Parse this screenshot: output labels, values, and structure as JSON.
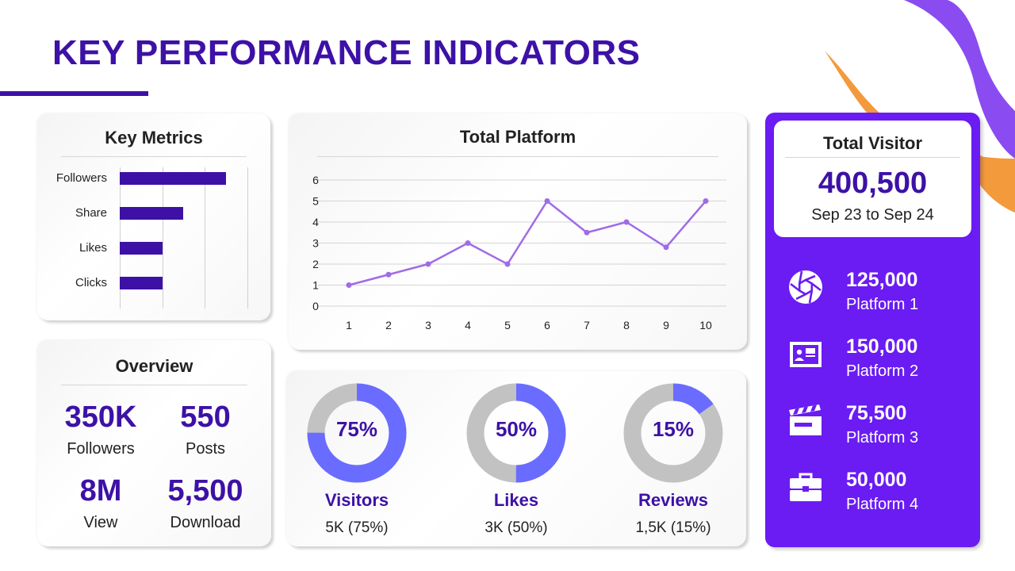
{
  "page": {
    "title": "KEY PERFORMANCE INDICATORS"
  },
  "colors": {
    "primary": "#3d11a6",
    "accent": "#6a1cf2",
    "line": "#a06be6",
    "donut_fill": "#6a6cff",
    "donut_rest": "#c2c2c2",
    "deco_orange": "#f39a3d",
    "deco_purple": "#8a4cf0"
  },
  "key_metrics": {
    "title": "Key Metrics",
    "chart_data": {
      "type": "bar",
      "orientation": "horizontal",
      "categories": [
        "Followers",
        "Share",
        "Likes",
        "Clicks"
      ],
      "values": [
        2.5,
        1.5,
        1.0,
        1.0
      ],
      "xlim": [
        0,
        3
      ],
      "grid": true
    }
  },
  "overview": {
    "title": "Overview",
    "stats": [
      {
        "value": "350K",
        "label": "Followers"
      },
      {
        "value": "550",
        "label": "Posts"
      },
      {
        "value": "8M",
        "label": "View"
      },
      {
        "value": "5,500",
        "label": "Download"
      }
    ]
  },
  "total_platform": {
    "title": "Total Platform",
    "chart_data": {
      "type": "line",
      "x": [
        1,
        2,
        3,
        4,
        5,
        6,
        7,
        8,
        9,
        10
      ],
      "values": [
        1,
        1.5,
        2,
        3,
        2,
        5,
        3.5,
        4,
        2.8,
        5
      ],
      "ylim": [
        0,
        6
      ],
      "yticks": [
        "0",
        "1",
        "2",
        "3",
        "4",
        "5",
        "6"
      ],
      "xticks": [
        "1",
        "2",
        "3",
        "4",
        "5",
        "6",
        "7",
        "8",
        "9",
        "10"
      ],
      "grid": true
    }
  },
  "donuts": {
    "chart_data": [
      {
        "type": "pie",
        "percent": 75,
        "label": "75%",
        "name": "Visitors",
        "detail": "5K (75%)"
      },
      {
        "type": "pie",
        "percent": 50,
        "label": "50%",
        "name": "Likes",
        "detail": "3K (50%)"
      },
      {
        "type": "pie",
        "percent": 15,
        "label": "15%",
        "name": "Reviews",
        "detail": "1,5K (15%)"
      }
    ]
  },
  "visitor": {
    "title": "Total Visitor",
    "total": "400,500",
    "range": "Sep 23 to Sep 24",
    "platforms": [
      {
        "icon": "aperture-icon",
        "value": "125,000",
        "label": "Platform 1"
      },
      {
        "icon": "presentation-screen-icon",
        "value": "150,000",
        "label": "Platform 2"
      },
      {
        "icon": "clapperboard-icon",
        "value": "75,500",
        "label": "Platform 3"
      },
      {
        "icon": "briefcase-icon",
        "value": "50,000",
        "label": "Platform 4"
      }
    ]
  }
}
